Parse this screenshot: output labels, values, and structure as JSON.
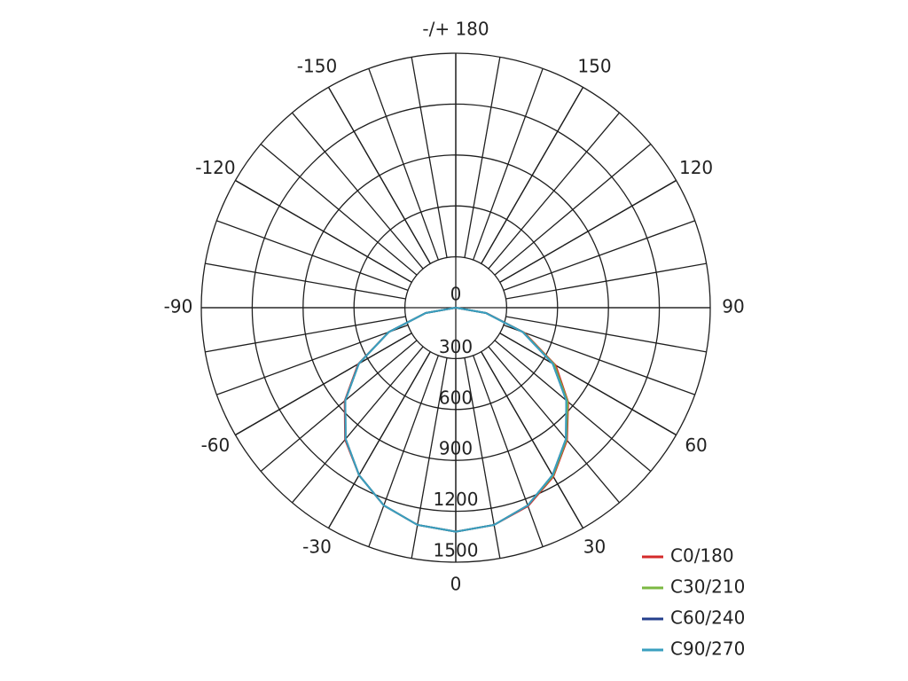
{
  "chart_data": {
    "type": "polar",
    "rlim": [
      0,
      1500
    ],
    "rticks": [
      0,
      300,
      600,
      900,
      1200,
      1500
    ],
    "thetaticks": [
      0,
      30,
      60,
      90,
      120,
      150,
      {
        "value": 180,
        "label": "-/+ 180"
      },
      -150,
      -120,
      -90,
      -60,
      -30
    ],
    "x": [
      -90,
      -80,
      -70,
      -60,
      -50,
      -40,
      -30,
      -20,
      -10,
      0,
      10,
      20,
      30,
      40,
      50,
      60,
      70,
      80,
      90
    ],
    "series": [
      {
        "name": "C0/180",
        "color": "#d42a2a",
        "values": [
          0,
          180,
          420,
          665,
          855,
          1015,
          1140,
          1240,
          1300,
          1320,
          1300,
          1245,
          1150,
          1020,
          865,
          680,
          430,
          185,
          0
        ]
      },
      {
        "name": "C30/210",
        "color": "#7bb842",
        "values": [
          0,
          180,
          420,
          660,
          850,
          1010,
          1140,
          1240,
          1300,
          1320,
          1300,
          1240,
          1145,
          1015,
          860,
          670,
          425,
          180,
          0
        ]
      },
      {
        "name": "C60/240",
        "color": "#243f8c",
        "values": [
          0,
          180,
          420,
          660,
          850,
          1010,
          1140,
          1240,
          1300,
          1320,
          1300,
          1240,
          1140,
          1010,
          850,
          660,
          420,
          180,
          0
        ]
      },
      {
        "name": "C90/270",
        "color": "#3a9fbf",
        "values": [
          0,
          180,
          420,
          660,
          850,
          1010,
          1140,
          1240,
          1300,
          1320,
          1300,
          1240,
          1140,
          1010,
          850,
          660,
          420,
          180,
          0
        ]
      }
    ]
  }
}
